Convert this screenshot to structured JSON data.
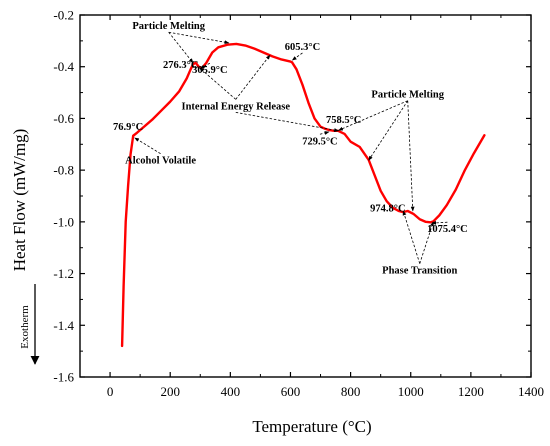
{
  "chart_data": {
    "type": "line",
    "xlabel": "Temperature (°C)",
    "ylabel": "Heat Flow (mW/mg)",
    "xlim": [
      -100,
      1400
    ],
    "ylim": [
      -1.6,
      -0.2
    ],
    "xticks": [
      0,
      200,
      400,
      600,
      800,
      1000,
      1200,
      1400
    ],
    "yticks": [
      -0.2,
      -0.4,
      -0.6,
      -0.8,
      -1.0,
      -1.2,
      -1.4,
      -1.6
    ],
    "xtick_labels": [
      "0",
      "200",
      "400",
      "600",
      "800",
      "1000",
      "1200",
      "1400"
    ],
    "ytick_labels": [
      "-0.2",
      "-0.4",
      "-0.6",
      "-0.8",
      "-1.0",
      "-1.2",
      "-1.4",
      "-1.6"
    ],
    "grid": false,
    "line_color": "#ff0000",
    "series": [
      {
        "x": [
          40,
          45,
          52,
          60,
          68,
          76.9,
          90,
          110,
          140,
          170,
          200,
          230,
          255,
          268,
          276.3,
          285,
          295,
          305.9,
          320,
          340,
          360,
          390,
          420,
          450,
          480,
          510,
          540,
          570,
          600,
          605.3,
          620,
          640,
          660,
          680,
          700,
          715,
          729.5,
          745,
          758.5,
          780,
          800,
          830,
          860,
          880,
          900,
          920,
          940,
          960,
          974.8,
          990,
          1010,
          1030,
          1050,
          1065,
          1075.4,
          1095,
          1120,
          1150,
          1180,
          1210,
          1245
        ],
        "y": [
          -1.48,
          -1.25,
          -1.0,
          -0.86,
          -0.74,
          -0.667,
          -0.655,
          -0.635,
          -0.605,
          -0.57,
          -0.535,
          -0.495,
          -0.445,
          -0.41,
          -0.39,
          -0.385,
          -0.4,
          -0.405,
          -0.385,
          -0.345,
          -0.325,
          -0.315,
          -0.312,
          -0.318,
          -0.33,
          -0.345,
          -0.36,
          -0.372,
          -0.38,
          -0.383,
          -0.41,
          -0.47,
          -0.54,
          -0.6,
          -0.632,
          -0.64,
          -0.645,
          -0.648,
          -0.648,
          -0.66,
          -0.69,
          -0.71,
          -0.76,
          -0.82,
          -0.88,
          -0.92,
          -0.945,
          -0.958,
          -0.962,
          -0.958,
          -0.97,
          -0.99,
          -1.0,
          -1.002,
          -0.998,
          -0.975,
          -0.935,
          -0.875,
          -0.8,
          -0.735,
          -0.665
        ]
      }
    ],
    "annotations": [
      {
        "text": "Particle Melting",
        "tx": 195,
        "ty": -0.255,
        "anchor": "middle",
        "arrows": [
          [
            276,
            -0.385
          ],
          [
            395,
            -0.308
          ]
        ]
      },
      {
        "text": "276.3°C",
        "tx": 235,
        "ty": -0.405,
        "anchor": "middle",
        "arrows": []
      },
      {
        "text": "305.9°C",
        "tx": 332,
        "ty": -0.425,
        "anchor": "middle",
        "arrows": [
          [
            300,
            -0.407
          ]
        ]
      },
      {
        "text": "605.3°C",
        "tx": 640,
        "ty": -0.335,
        "anchor": "middle",
        "arrows": [
          [
            606,
            -0.375
          ]
        ]
      },
      {
        "text": "Internal Energy Release",
        "tx": 418,
        "ty": -0.565,
        "anchor": "middle",
        "arrows": [
          [
            298,
            -0.405
          ],
          [
            532,
            -0.355
          ],
          [
            760,
            -0.648
          ]
        ]
      },
      {
        "text": "Particle Melting",
        "tx": 990,
        "ty": -0.52,
        "anchor": "middle",
        "arrows": [
          [
            760,
            -0.646
          ],
          [
            860,
            -0.762
          ],
          [
            1007,
            -0.958
          ]
        ]
      },
      {
        "text": "758.5°C",
        "tx": 777,
        "ty": -0.618,
        "anchor": "middle",
        "arrows": []
      },
      {
        "text": "729.5°C",
        "tx": 698,
        "ty": -0.7,
        "anchor": "middle",
        "arrows": [
          [
            728,
            -0.652
          ]
        ]
      },
      {
        "text": "76.9°C",
        "tx": 60,
        "ty": -0.645,
        "anchor": "middle",
        "arrows": []
      },
      {
        "text": "Alcohol Volatile",
        "tx": 168,
        "ty": -0.775,
        "anchor": "middle",
        "arrows": [
          [
            82,
            -0.675
          ]
        ]
      },
      {
        "text": "974.8°C",
        "tx": 924,
        "ty": -0.96,
        "anchor": "middle",
        "arrows": []
      },
      {
        "text": "1075.4°C",
        "tx": 1122,
        "ty": -1.04,
        "anchor": "middle",
        "arrows": [
          [
            1070,
            -1.005
          ]
        ]
      },
      {
        "text": "Phase Transition",
        "tx": 1030,
        "ty": -1.2,
        "anchor": "middle",
        "arrows": [
          [
            975,
            -0.958
          ],
          [
            1075,
            -1.0
          ]
        ]
      }
    ],
    "side_note": "Exotherm"
  }
}
